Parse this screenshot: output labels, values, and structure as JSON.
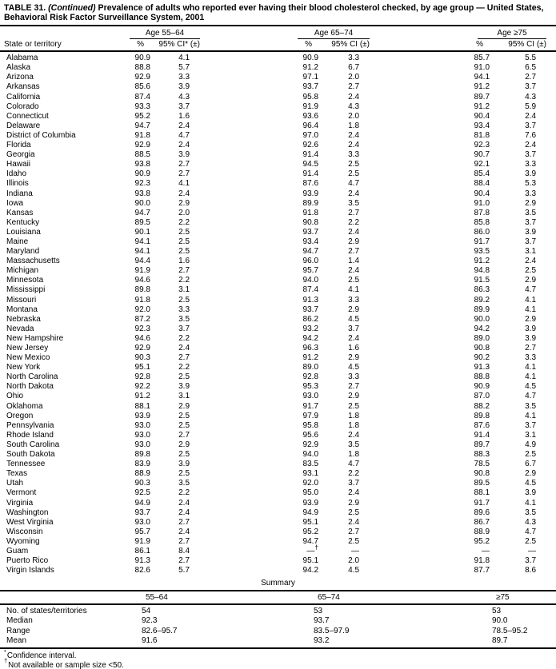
{
  "title": {
    "prefix": "TABLE 31.",
    "continued": "(Continued)",
    "rest": "Prevalence of adults who reported ever having their blood cholesterol checked, by age group — United States, Behavioral Risk Factor Surveillance System, 2001"
  },
  "header": {
    "state_col": "State or territory",
    "groups": [
      {
        "label": "Age 55–64",
        "pct": "%",
        "ci": "95% CI* (±)"
      },
      {
        "label": "Age 65–74",
        "pct": "%",
        "ci": "95% CI (±)"
      },
      {
        "label": "Age ≥75",
        "pct": "%",
        "ci": "95% CI (±)"
      }
    ]
  },
  "rows": [
    {
      "state": "Alabama",
      "values": [
        "90.9",
        "4.1",
        "90.9",
        "3.3",
        "85.7",
        "5.5"
      ]
    },
    {
      "state": "Alaska",
      "values": [
        "88.8",
        "5.7",
        "91.2",
        "6.7",
        "91.0",
        "6.5"
      ]
    },
    {
      "state": "Arizona",
      "values": [
        "92.9",
        "3.3",
        "97.1",
        "2.0",
        "94.1",
        "2.7"
      ]
    },
    {
      "state": "Arkansas",
      "values": [
        "85.6",
        "3.9",
        "93.7",
        "2.7",
        "91.2",
        "3.7"
      ]
    },
    {
      "state": "California",
      "values": [
        "87.4",
        "4.3",
        "95.8",
        "2.4",
        "89.7",
        "4.3"
      ]
    },
    {
      "state": "Colorado",
      "values": [
        "93.3",
        "3.7",
        "91.9",
        "4.3",
        "91.2",
        "5.9"
      ]
    },
    {
      "state": "Connecticut",
      "values": [
        "95.2",
        "1.6",
        "93.6",
        "2.0",
        "90.4",
        "2.4"
      ]
    },
    {
      "state": "Delaware",
      "values": [
        "94.7",
        "2.4",
        "96.4",
        "1.8",
        "93.4",
        "3.7"
      ]
    },
    {
      "state": "District of Columbia",
      "values": [
        "91.8",
        "4.7",
        "97.0",
        "2.4",
        "81.8",
        "7.6"
      ]
    },
    {
      "state": "Florida",
      "values": [
        "92.9",
        "2.4",
        "92.6",
        "2.4",
        "92.3",
        "2.4"
      ]
    },
    {
      "state": "Georgia",
      "values": [
        "88.5",
        "3.9",
        "91.4",
        "3.3",
        "90.7",
        "3.7"
      ]
    },
    {
      "state": "Hawaii",
      "values": [
        "93.8",
        "2.7",
        "94.5",
        "2.5",
        "92.1",
        "3.3"
      ]
    },
    {
      "state": "Idaho",
      "values": [
        "90.9",
        "2.7",
        "91.4",
        "2.5",
        "85.4",
        "3.9"
      ]
    },
    {
      "state": "Illinois",
      "values": [
        "92.3",
        "4.1",
        "87.6",
        "4.7",
        "88.4",
        "5.3"
      ]
    },
    {
      "state": "Indiana",
      "values": [
        "93.8",
        "2.4",
        "93.9",
        "2.4",
        "90.4",
        "3.3"
      ]
    },
    {
      "state": "Iowa",
      "values": [
        "90.0",
        "2.9",
        "89.9",
        "3.5",
        "91.0",
        "2.9"
      ]
    },
    {
      "state": "Kansas",
      "values": [
        "94.7",
        "2.0",
        "91.8",
        "2.7",
        "87.8",
        "3.5"
      ]
    },
    {
      "state": "Kentucky",
      "values": [
        "89.5",
        "2.2",
        "90.8",
        "2.2",
        "85.8",
        "3.7"
      ]
    },
    {
      "state": "Louisiana",
      "values": [
        "90.1",
        "2.5",
        "93.7",
        "2.4",
        "86.0",
        "3.9"
      ]
    },
    {
      "state": "Maine",
      "values": [
        "94.1",
        "2.5",
        "93.4",
        "2.9",
        "91.7",
        "3.7"
      ]
    },
    {
      "state": "Maryland",
      "values": [
        "94.1",
        "2.5",
        "94.7",
        "2.7",
        "93.5",
        "3.1"
      ]
    },
    {
      "state": "Massachusetts",
      "values": [
        "94.4",
        "1.6",
        "96.0",
        "1.4",
        "91.2",
        "2.4"
      ]
    },
    {
      "state": "Michigan",
      "values": [
        "91.9",
        "2.7",
        "95.7",
        "2.4",
        "94.8",
        "2.5"
      ]
    },
    {
      "state": "Minnesota",
      "values": [
        "94.6",
        "2.2",
        "94.0",
        "2.5",
        "91.5",
        "2.9"
      ]
    },
    {
      "state": "Mississippi",
      "values": [
        "89.8",
        "3.1",
        "87.4",
        "4.1",
        "86.3",
        "4.7"
      ]
    },
    {
      "state": "Missouri",
      "values": [
        "91.8",
        "2.5",
        "91.3",
        "3.3",
        "89.2",
        "4.1"
      ]
    },
    {
      "state": "Montana",
      "values": [
        "92.0",
        "3.3",
        "93.7",
        "2.9",
        "89.9",
        "4.1"
      ]
    },
    {
      "state": "Nebraska",
      "values": [
        "87.2",
        "3.5",
        "86.2",
        "4.5",
        "90.0",
        "2.9"
      ]
    },
    {
      "state": "Nevada",
      "values": [
        "92.3",
        "3.7",
        "93.2",
        "3.7",
        "94.2",
        "3.9"
      ]
    },
    {
      "state": "New Hampshire",
      "values": [
        "94.6",
        "2.2",
        "94.2",
        "2.4",
        "89.0",
        "3.9"
      ]
    },
    {
      "state": "New Jersey",
      "values": [
        "92.9",
        "2.4",
        "96.3",
        "1.6",
        "90.8",
        "2.7"
      ]
    },
    {
      "state": "New Mexico",
      "values": [
        "90.3",
        "2.7",
        "91.2",
        "2.9",
        "90.2",
        "3.3"
      ]
    },
    {
      "state": "New York",
      "values": [
        "95.1",
        "2.2",
        "89.0",
        "4.5",
        "91.3",
        "4.1"
      ]
    },
    {
      "state": "North Carolina",
      "values": [
        "92.8",
        "2.5",
        "92.8",
        "3.3",
        "88.8",
        "4.1"
      ]
    },
    {
      "state": "North Dakota",
      "values": [
        "92.2",
        "3.9",
        "95.3",
        "2.7",
        "90.9",
        "4.5"
      ]
    },
    {
      "state": "Ohio",
      "values": [
        "91.2",
        "3.1",
        "93.0",
        "2.9",
        "87.0",
        "4.7"
      ]
    },
    {
      "state": "Oklahoma",
      "values": [
        "88.1",
        "2.9",
        "91.7",
        "2.5",
        "88.2",
        "3.5"
      ]
    },
    {
      "state": "Oregon",
      "values": [
        "93.9",
        "2.5",
        "97.9",
        "1.8",
        "89.8",
        "4.1"
      ]
    },
    {
      "state": "Pennsylvania",
      "values": [
        "93.0",
        "2.5",
        "95.8",
        "1.8",
        "87.6",
        "3.7"
      ]
    },
    {
      "state": "Rhode Island",
      "values": [
        "93.0",
        "2.7",
        "95.6",
        "2.4",
        "91.4",
        "3.1"
      ]
    },
    {
      "state": "South Carolina",
      "values": [
        "93.0",
        "2.9",
        "92.9",
        "3.5",
        "89.7",
        "4.9"
      ]
    },
    {
      "state": "South Dakota",
      "values": [
        "89.8",
        "2.5",
        "94.0",
        "1.8",
        "88.3",
        "2.5"
      ]
    },
    {
      "state": "Tennessee",
      "values": [
        "83.9",
        "3.9",
        "83.5",
        "4.7",
        "78.5",
        "6.7"
      ]
    },
    {
      "state": "Texas",
      "values": [
        "88.9",
        "2.5",
        "93.1",
        "2.2",
        "90.8",
        "2.9"
      ]
    },
    {
      "state": "Utah",
      "values": [
        "90.3",
        "3.5",
        "92.0",
        "3.7",
        "89.5",
        "4.5"
      ]
    },
    {
      "state": "Vermont",
      "values": [
        "92.5",
        "2.2",
        "95.0",
        "2.4",
        "88.1",
        "3.9"
      ]
    },
    {
      "state": "Virginia",
      "values": [
        "94.9",
        "2.4",
        "93.9",
        "2.9",
        "91.7",
        "4.1"
      ]
    },
    {
      "state": "Washington",
      "values": [
        "93.7",
        "2.4",
        "94.9",
        "2.5",
        "89.6",
        "3.5"
      ]
    },
    {
      "state": "West Virginia",
      "values": [
        "93.0",
        "2.7",
        "95.1",
        "2.4",
        "86.7",
        "4.3"
      ]
    },
    {
      "state": "Wisconsin",
      "values": [
        "95.7",
        "2.4",
        "95.2",
        "2.7",
        "88.9",
        "4.7"
      ]
    },
    {
      "state": "Wyoming",
      "values": [
        "91.9",
        "2.7",
        "94.7",
        "2.5",
        "95.2",
        "2.5"
      ]
    },
    {
      "state": "Guam",
      "values": [
        "86.1",
        "8.4",
        "—†",
        "—",
        "—",
        "—"
      ]
    },
    {
      "state": "Puerto Rico",
      "values": [
        "91.3",
        "2.7",
        "95.1",
        "2.0",
        "91.8",
        "3.7"
      ]
    },
    {
      "state": "Virgin Islands",
      "values": [
        "82.6",
        "5.7",
        "94.2",
        "4.5",
        "87.7",
        "8.6"
      ]
    }
  ],
  "summary": {
    "label": "Summary",
    "columns": [
      "55–64",
      "65–74",
      "≥75"
    ],
    "rows": [
      {
        "label": "No. of states/territories",
        "values": [
          "54",
          "53",
          "53"
        ]
      },
      {
        "label": "Median",
        "values": [
          "92.3",
          "93.7",
          "90.0"
        ]
      },
      {
        "label": "Range",
        "values": [
          "82.6–95.7",
          "83.5–97.9",
          "78.5–95.2"
        ]
      },
      {
        "label": "Mean",
        "values": [
          "91.6",
          "93.2",
          "89.7"
        ]
      }
    ]
  },
  "footnotes": [
    {
      "marker": "*",
      "text": "Confidence interval."
    },
    {
      "marker": "†",
      "text": "Not available or sample size <50."
    }
  ]
}
